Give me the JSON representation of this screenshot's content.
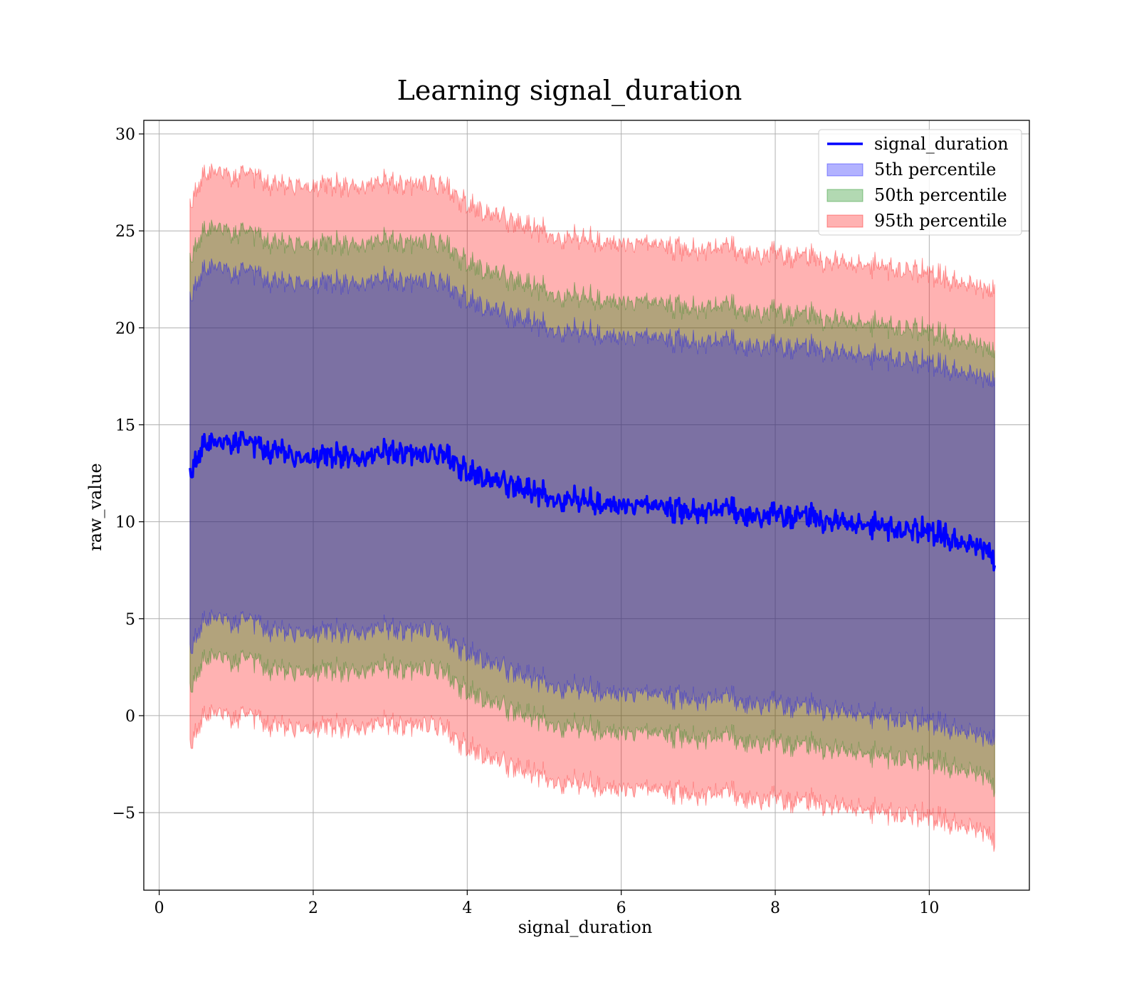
{
  "chart_data": {
    "type": "area",
    "title": "Learning signal_duration",
    "xlabel": "signal_duration",
    "ylabel": "raw_value",
    "xlim": [
      -0.2,
      11.3
    ],
    "ylim": [
      -9,
      30.7
    ],
    "xticks": [
      0,
      2,
      4,
      6,
      8,
      10
    ],
    "yticks": [
      -5,
      0,
      5,
      10,
      15,
      20,
      25,
      30
    ],
    "ytick_labels": [
      "−5",
      "0",
      "5",
      "10",
      "15",
      "20",
      "25",
      "30"
    ],
    "grid": true,
    "legend_position": "top-right",
    "x_range": [
      0.4,
      10.85
    ],
    "series": [
      {
        "name": "signal_duration",
        "kind": "line",
        "color": "#0000ff",
        "x": [
          0.4,
          0.6,
          0.8,
          1.0,
          1.15,
          1.4,
          1.6,
          1.8,
          2.0,
          2.2,
          2.4,
          2.6,
          2.8,
          3.0,
          3.2,
          3.4,
          3.6,
          3.8,
          4.0,
          4.2,
          4.4,
          4.6,
          4.8,
          5.0,
          5.2,
          5.4,
          5.6,
          5.8,
          6.0,
          6.2,
          6.4,
          6.6,
          6.8,
          7.0,
          7.2,
          7.4,
          7.6,
          7.8,
          8.0,
          8.2,
          8.4,
          8.6,
          8.8,
          9.0,
          9.2,
          9.4,
          9.6,
          9.8,
          10.0,
          10.2,
          10.4,
          10.6,
          10.8,
          10.85
        ],
        "values": [
          12.4,
          14.0,
          14.1,
          14.0,
          14.3,
          13.7,
          13.7,
          13.3,
          13.3,
          13.4,
          13.4,
          13.2,
          13.5,
          13.6,
          13.5,
          13.5,
          13.5,
          13.2,
          12.5,
          12.3,
          12.1,
          11.8,
          11.6,
          11.4,
          11.0,
          11.2,
          11.0,
          10.9,
          10.8,
          10.9,
          10.9,
          10.7,
          10.6,
          10.5,
          10.5,
          10.8,
          10.3,
          10.2,
          10.5,
          10.2,
          10.4,
          10.0,
          10.1,
          9.9,
          9.8,
          9.7,
          9.5,
          9.6,
          9.5,
          9.3,
          8.9,
          8.7,
          8.6,
          7.5
        ]
      },
      {
        "name": "5th percentile",
        "kind": "band",
        "color": "#0000ff",
        "upper": [
          21.5,
          23.0,
          23.2,
          22.6,
          23.2,
          22.5,
          22.4,
          22.4,
          22.2,
          22.4,
          22.3,
          22.2,
          22.5,
          22.5,
          22.3,
          22.5,
          22.4,
          22.0,
          21.4,
          21.1,
          20.9,
          20.5,
          20.4,
          20.1,
          19.7,
          19.9,
          19.7,
          19.6,
          19.5,
          19.6,
          19.6,
          19.4,
          19.4,
          19.2,
          19.2,
          19.5,
          19.0,
          19.0,
          19.2,
          18.9,
          19.1,
          18.8,
          18.8,
          18.7,
          18.5,
          18.4,
          18.3,
          18.3,
          18.2,
          18.0,
          17.7,
          17.5,
          17.4,
          17.2
        ],
        "lower": [
          3.3,
          4.9,
          5.1,
          4.6,
          5.2,
          4.5,
          4.4,
          4.3,
          4.2,
          4.4,
          4.3,
          4.2,
          4.5,
          4.5,
          4.3,
          4.5,
          4.4,
          3.8,
          3.2,
          2.9,
          2.6,
          2.2,
          2.0,
          1.8,
          1.3,
          1.5,
          1.3,
          1.2,
          1.1,
          1.2,
          1.2,
          1.0,
          1.0,
          0.8,
          0.8,
          1.1,
          0.6,
          0.5,
          0.8,
          0.4,
          0.6,
          0.3,
          0.3,
          0.2,
          0.0,
          -0.1,
          -0.3,
          -0.2,
          -0.3,
          -0.5,
          -0.8,
          -1.0,
          -1.1,
          -1.3
        ]
      },
      {
        "name": "50th percentile",
        "kind": "band",
        "color": "#008000",
        "upper": [
          23.5,
          25.0,
          25.2,
          24.7,
          25.2,
          24.5,
          24.4,
          24.4,
          24.2,
          24.4,
          24.3,
          24.2,
          24.5,
          24.5,
          24.3,
          24.5,
          24.4,
          24.0,
          23.3,
          23.0,
          22.8,
          22.4,
          22.2,
          22.0,
          21.5,
          21.7,
          21.5,
          21.4,
          21.3,
          21.4,
          21.4,
          21.2,
          21.1,
          21.0,
          21.0,
          21.3,
          20.8,
          20.7,
          21.0,
          20.6,
          20.8,
          20.4,
          20.5,
          20.3,
          20.2,
          20.1,
          19.9,
          20.0,
          19.8,
          19.6,
          19.3,
          19.1,
          19.0,
          18.6
        ],
        "lower": [
          1.3,
          2.9,
          3.1,
          2.6,
          3.2,
          2.5,
          2.4,
          2.3,
          2.2,
          2.4,
          2.3,
          2.2,
          2.5,
          2.5,
          2.3,
          2.5,
          2.4,
          1.9,
          1.2,
          0.9,
          0.6,
          0.2,
          0.0,
          -0.2,
          -0.7,
          -0.5,
          -0.7,
          -0.8,
          -0.9,
          -0.8,
          -0.8,
          -1.0,
          -1.0,
          -1.2,
          -1.2,
          -0.9,
          -1.4,
          -1.5,
          -1.2,
          -1.6,
          -1.4,
          -1.7,
          -1.7,
          -1.8,
          -2.0,
          -2.1,
          -2.3,
          -2.2,
          -2.3,
          -2.5,
          -2.8,
          -3.0,
          -3.1,
          -4.2
        ]
      },
      {
        "name": "95th percentile",
        "kind": "band",
        "color": "#ff0000",
        "upper": [
          26.3,
          27.9,
          28.1,
          27.6,
          28.2,
          27.5,
          27.4,
          27.4,
          27.2,
          27.4,
          27.3,
          27.2,
          27.5,
          27.5,
          27.3,
          27.5,
          27.4,
          27.0,
          26.3,
          26.0,
          25.8,
          25.4,
          25.2,
          25.0,
          24.5,
          24.7,
          24.5,
          24.4,
          24.3,
          24.4,
          24.4,
          24.2,
          24.1,
          24.0,
          24.0,
          24.3,
          23.8,
          23.7,
          24.0,
          23.6,
          23.8,
          23.4,
          23.5,
          23.3,
          23.2,
          23.1,
          22.9,
          23.0,
          22.8,
          22.6,
          22.3,
          22.1,
          22.0,
          22.0
        ],
        "lower": [
          -1.6,
          0.0,
          0.2,
          -0.3,
          0.3,
          -0.4,
          -0.5,
          -0.6,
          -0.7,
          -0.5,
          -0.6,
          -0.7,
          -0.4,
          -0.4,
          -0.6,
          -0.4,
          -0.5,
          -1.0,
          -1.7,
          -2.0,
          -2.3,
          -2.7,
          -2.9,
          -3.1,
          -3.6,
          -3.4,
          -3.6,
          -3.7,
          -3.8,
          -3.7,
          -3.7,
          -3.9,
          -3.9,
          -4.1,
          -4.1,
          -3.8,
          -4.3,
          -4.4,
          -4.1,
          -4.5,
          -4.3,
          -4.6,
          -4.6,
          -4.7,
          -4.9,
          -5.0,
          -5.2,
          -5.1,
          -5.2,
          -5.4,
          -5.7,
          -5.9,
          -6.0,
          -7.0
        ]
      }
    ]
  }
}
